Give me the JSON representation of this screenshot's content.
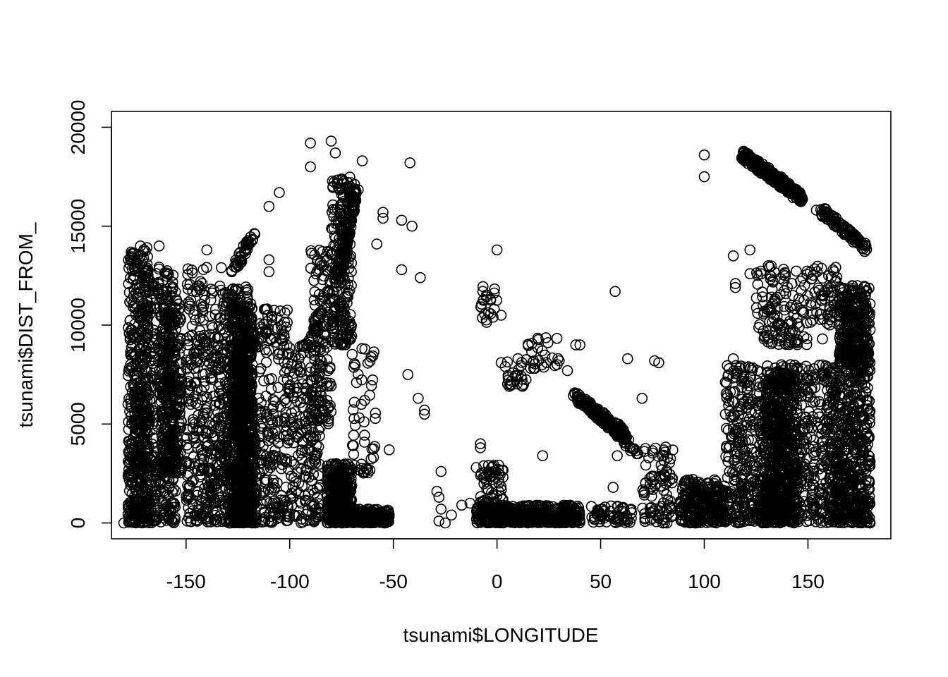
{
  "chart_data": {
    "type": "scatter",
    "title": "",
    "xlabel": "tsunami$LONGITUDE",
    "ylabel": "tsunami$DIST_FROM_",
    "xlim": [
      -186,
      190
    ],
    "ylim": [
      -800,
      20800
    ],
    "xticks": [
      -150,
      -100,
      -50,
      0,
      50,
      100,
      150
    ],
    "yticks": [
      0,
      5000,
      10000,
      15000,
      20000
    ],
    "grid": false,
    "legend": "none",
    "marker": "open-circle",
    "color": "#000000",
    "clusters": [
      {
        "x": [
          -178,
          -168
        ],
        "y": [
          0,
          14000
        ],
        "n": 520
      },
      {
        "x": [
          -170,
          -155
        ],
        "y": [
          0,
          13000
        ],
        "n": 360
      },
      {
        "x": [
          -162,
          -152
        ],
        "y": [
          2500,
          11500
        ],
        "n": 320
      },
      {
        "x": [
          -150,
          -140
        ],
        "y": [
          0,
          13000
        ],
        "n": 200
      },
      {
        "x": [
          -140,
          -130
        ],
        "y": [
          0,
          12000
        ],
        "n": 230
      },
      {
        "x": [
          -130,
          -118
        ],
        "y": [
          0,
          12000
        ],
        "n": 560
      },
      {
        "x": [
          -128,
          -118
        ],
        "y": [
          5000,
          11000
        ],
        "n": 320
      },
      {
        "x": [
          -125,
          -116
        ],
        "y": [
          0,
          5000
        ],
        "n": 220
      },
      {
        "x": [
          -115,
          -100
        ],
        "y": [
          0,
          11000
        ],
        "n": 210
      },
      {
        "x": [
          -100,
          -85
        ],
        "y": [
          0,
          9000
        ],
        "n": 190
      },
      {
        "x": [
          -90,
          -80
        ],
        "y": [
          5000,
          14000
        ],
        "n": 130
      },
      {
        "x": [
          -80,
          -70
        ],
        "y": [
          9000,
          17500
        ],
        "n": 210
      },
      {
        "x": [
          -82,
          -70
        ],
        "y": [
          0,
          3000
        ],
        "n": 360
      },
      {
        "x": [
          -72,
          -52
        ],
        "y": [
          0,
          700
        ],
        "n": 200
      },
      {
        "x": [
          -70,
          -58
        ],
        "y": [
          2500,
          9000
        ],
        "n": 50
      },
      {
        "x": [
          -10,
          40
        ],
        "y": [
          0,
          900
        ],
        "n": 470
      },
      {
        "x": [
          -8,
          3
        ],
        "y": [
          1000,
          3000
        ],
        "n": 60
      },
      {
        "x": [
          -8,
          0
        ],
        "y": [
          10000,
          12000
        ],
        "n": 22
      },
      {
        "x": [
          5,
          15
        ],
        "y": [
          6800,
          8400
        ],
        "n": 26
      },
      {
        "x": [
          15,
          30
        ],
        "y": [
          7800,
          9400
        ],
        "n": 26
      },
      {
        "x": [
          45,
          65
        ],
        "y": [
          0,
          900
        ],
        "n": 60
      },
      {
        "x": [
          70,
          85
        ],
        "y": [
          0,
          4000
        ],
        "n": 90
      },
      {
        "x": [
          88,
          110
        ],
        "y": [
          0,
          2200
        ],
        "n": 260
      },
      {
        "x": [
          110,
          128
        ],
        "y": [
          0,
          8000
        ],
        "n": 300
      },
      {
        "x": [
          128,
          145
        ],
        "y": [
          0,
          8000
        ],
        "n": 780
      },
      {
        "x": [
          125,
          150
        ],
        "y": [
          9000,
          13000
        ],
        "n": 130
      },
      {
        "x": [
          145,
          160
        ],
        "y": [
          0,
          8000
        ],
        "n": 200
      },
      {
        "x": [
          160,
          180
        ],
        "y": [
          0,
          8000
        ],
        "n": 620
      },
      {
        "x": [
          165,
          180
        ],
        "y": [
          8000,
          12000
        ],
        "n": 340
      },
      {
        "x": [
          150,
          165
        ],
        "y": [
          10000,
          13000
        ],
        "n": 60
      }
    ],
    "bands": [
      {
        "x": [
          118,
          147
        ],
        "y": [
          18700,
          16400
        ],
        "n": 340
      },
      {
        "x": [
          155,
          178
        ],
        "y": [
          15900,
          13900
        ],
        "n": 90
      },
      {
        "x": [
          -127,
          -117
        ],
        "y": [
          12800,
          14700
        ],
        "n": 40
      },
      {
        "x": [
          -77,
          -68
        ],
        "y": [
          12000,
          17000
        ],
        "n": 120
      },
      {
        "x": [
          37,
          62
        ],
        "y": [
          6500,
          4400
        ],
        "n": 180
      },
      {
        "x": [
          50,
          67
        ],
        "y": [
          5400,
          3600
        ],
        "n": 60
      },
      {
        "x": [
          -95,
          -75
        ],
        "y": [
          8000,
          13500
        ],
        "n": 40
      },
      {
        "x": [
          -120,
          -108
        ],
        "y": [
          8500,
          10500
        ],
        "n": 30
      }
    ],
    "extra_points": [
      [
        -90,
        19200
      ],
      [
        -80,
        19300
      ],
      [
        -90,
        18000
      ],
      [
        -78,
        18700
      ],
      [
        -65,
        18300
      ],
      [
        -42,
        18200
      ],
      [
        -105,
        16700
      ],
      [
        -110,
        16000
      ],
      [
        -55,
        15700
      ],
      [
        -55,
        15400
      ],
      [
        -46,
        15300
      ],
      [
        -41,
        15000
      ],
      [
        -58,
        14100
      ],
      [
        -46,
        12800
      ],
      [
        -37,
        12400
      ],
      [
        -43,
        7500
      ],
      [
        -38,
        6300
      ],
      [
        -35,
        5700
      ],
      [
        -35,
        5500
      ],
      [
        -52,
        3700
      ],
      [
        -27,
        2600
      ],
      [
        -29,
        1600
      ],
      [
        -28,
        1300
      ],
      [
        -27,
        700
      ],
      [
        -28,
        100
      ],
      [
        0,
        13800
      ],
      [
        2,
        10500
      ],
      [
        2,
        8100
      ],
      [
        4,
        7900
      ],
      [
        22,
        3400
      ],
      [
        34,
        7700
      ],
      [
        30,
        8200
      ],
      [
        40,
        9000
      ],
      [
        38,
        9000
      ],
      [
        57,
        11700
      ],
      [
        63,
        8300
      ],
      [
        70,
        6300
      ],
      [
        76,
        8200
      ],
      [
        78,
        8100
      ],
      [
        100,
        18600
      ],
      [
        100,
        17500
      ],
      [
        112,
        7800
      ],
      [
        114,
        8300
      ],
      [
        114,
        13500
      ],
      [
        115,
        12100
      ],
      [
        115,
        11900
      ],
      [
        122,
        13800
      ],
      [
        122,
        12600
      ],
      [
        118,
        1800
      ],
      [
        -140,
        13800
      ],
      [
        -110,
        13300
      ],
      [
        -110,
        12700
      ],
      [
        -150,
        3100
      ],
      [
        56,
        1800
      ],
      [
        58,
        3400
      ],
      [
        60,
        4700
      ],
      [
        80,
        0
      ],
      [
        82,
        0
      ],
      [
        -180,
        0
      ],
      [
        180,
        0
      ],
      [
        -172,
        14000
      ],
      [
        -163,
        14000
      ],
      [
        -133,
        12900
      ],
      [
        -128,
        12700
      ],
      [
        178,
        14000
      ],
      [
        160,
        12500
      ],
      [
        163,
        10600
      ],
      [
        157,
        9300
      ],
      [
        170,
        6600
      ],
      [
        178,
        6600
      ],
      [
        -143,
        12200
      ],
      [
        -145,
        11700
      ],
      [
        -8,
        3800
      ],
      [
        -8,
        4000
      ],
      [
        -10,
        2800
      ],
      [
        -13,
        1000
      ],
      [
        -17,
        900
      ],
      [
        -22,
        400
      ],
      [
        -25,
        0
      ]
    ]
  }
}
